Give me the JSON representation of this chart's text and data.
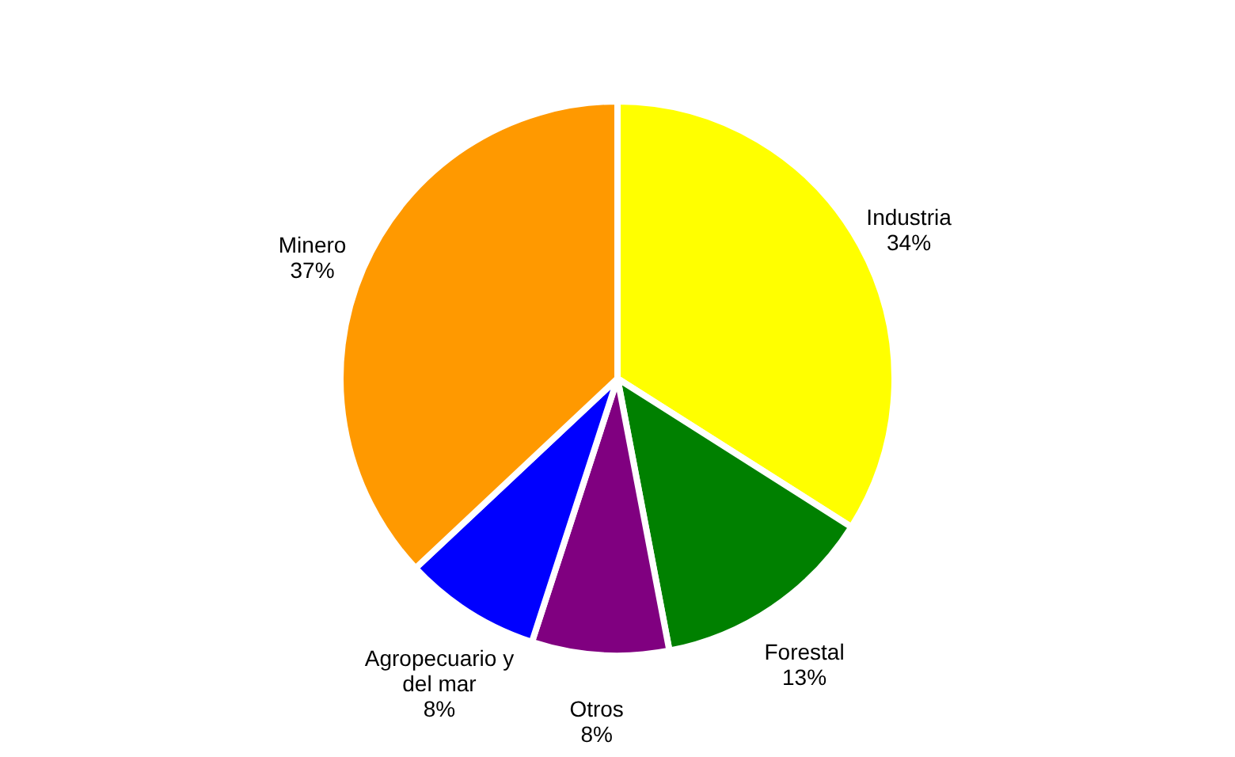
{
  "chart_data": {
    "type": "pie",
    "categories": [
      "Industria",
      "Forestal",
      "Otros",
      "Agropecuario y\ndel mar",
      "Minero"
    ],
    "values": [
      34,
      13,
      8,
      8,
      37
    ],
    "colors": [
      "#ffff00",
      "#008000",
      "#800080",
      "#0000ff",
      "#ff9900"
    ],
    "value_labels": [
      "34%",
      "13%",
      "8%",
      "8%",
      "37%"
    ],
    "legend": false
  }
}
